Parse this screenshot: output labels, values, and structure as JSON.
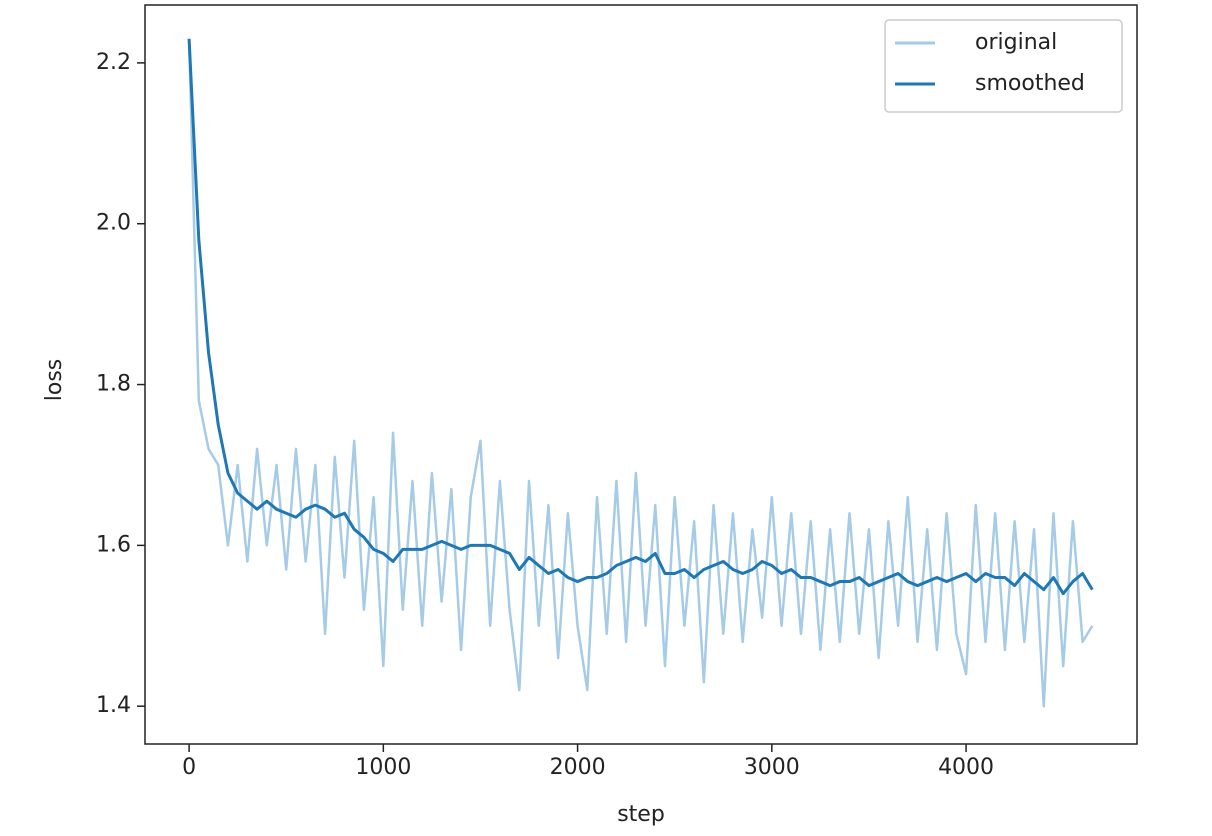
{
  "chart_data": {
    "type": "line",
    "xlabel": "step",
    "ylabel": "loss",
    "x": [
      0,
      50,
      100,
      150,
      200,
      250,
      300,
      350,
      400,
      450,
      500,
      550,
      600,
      650,
      700,
      750,
      800,
      850,
      900,
      950,
      1000,
      1050,
      1100,
      1150,
      1200,
      1250,
      1300,
      1350,
      1400,
      1450,
      1500,
      1550,
      1600,
      1650,
      1700,
      1750,
      1800,
      1850,
      1900,
      1950,
      2000,
      2050,
      2100,
      2150,
      2200,
      2250,
      2300,
      2350,
      2400,
      2450,
      2500,
      2550,
      2600,
      2650,
      2700,
      2750,
      2800,
      2850,
      2900,
      2950,
      3000,
      3050,
      3100,
      3150,
      3200,
      3250,
      3300,
      3350,
      3400,
      3450,
      3500,
      3550,
      3600,
      3650,
      3700,
      3750,
      3800,
      3850,
      3900,
      3950,
      4000,
      4050,
      4100,
      4150,
      4200,
      4250,
      4300,
      4350,
      4400,
      4450,
      4500,
      4550,
      4600,
      4650
    ],
    "series": [
      {
        "name": "original",
        "color": "#a6cbe6",
        "values": [
          2.23,
          1.78,
          1.72,
          1.7,
          1.6,
          1.7,
          1.58,
          1.72,
          1.6,
          1.7,
          1.57,
          1.72,
          1.58,
          1.7,
          1.49,
          1.71,
          1.56,
          1.73,
          1.52,
          1.66,
          1.45,
          1.74,
          1.52,
          1.68,
          1.5,
          1.69,
          1.53,
          1.67,
          1.47,
          1.66,
          1.73,
          1.5,
          1.68,
          1.52,
          1.42,
          1.68,
          1.5,
          1.65,
          1.46,
          1.64,
          1.5,
          1.42,
          1.66,
          1.49,
          1.68,
          1.48,
          1.69,
          1.5,
          1.65,
          1.45,
          1.66,
          1.5,
          1.63,
          1.43,
          1.65,
          1.49,
          1.64,
          1.48,
          1.62,
          1.51,
          1.66,
          1.5,
          1.64,
          1.49,
          1.63,
          1.47,
          1.62,
          1.48,
          1.64,
          1.49,
          1.62,
          1.46,
          1.63,
          1.5,
          1.66,
          1.48,
          1.62,
          1.47,
          1.64,
          1.49,
          1.44,
          1.65,
          1.48,
          1.64,
          1.47,
          1.63,
          1.48,
          1.62,
          1.4,
          1.64,
          1.45,
          1.63,
          1.48,
          1.5
        ]
      },
      {
        "name": "smoothed",
        "color": "#1f77b4",
        "values": [
          2.23,
          1.98,
          1.84,
          1.75,
          1.69,
          1.665,
          1.655,
          1.645,
          1.655,
          1.645,
          1.64,
          1.635,
          1.645,
          1.65,
          1.645,
          1.635,
          1.64,
          1.62,
          1.61,
          1.595,
          1.59,
          1.58,
          1.595,
          1.595,
          1.595,
          1.6,
          1.605,
          1.6,
          1.595,
          1.6,
          1.6,
          1.6,
          1.595,
          1.59,
          1.57,
          1.585,
          1.575,
          1.565,
          1.57,
          1.56,
          1.555,
          1.56,
          1.56,
          1.565,
          1.575,
          1.58,
          1.585,
          1.58,
          1.59,
          1.565,
          1.565,
          1.57,
          1.56,
          1.57,
          1.575,
          1.58,
          1.57,
          1.565,
          1.57,
          1.58,
          1.575,
          1.565,
          1.57,
          1.56,
          1.56,
          1.555,
          1.55,
          1.555,
          1.555,
          1.56,
          1.55,
          1.555,
          1.56,
          1.565,
          1.555,
          1.55,
          1.555,
          1.56,
          1.555,
          1.56,
          1.565,
          1.555,
          1.565,
          1.56,
          1.56,
          1.55,
          1.565,
          1.555,
          1.545,
          1.56,
          1.54,
          1.555,
          1.565,
          1.545
        ]
      }
    ],
    "xlim": [
      -227,
      4880
    ],
    "ylim": [
      1.353,
      2.272
    ],
    "xticks": [
      0,
      1000,
      2000,
      3000,
      4000
    ],
    "yticks": [
      1.4,
      1.6,
      1.8,
      {
        "value": 2,
        "label": "2.0"
      },
      2.2
    ],
    "legend": "upper right",
    "grid": false
  }
}
